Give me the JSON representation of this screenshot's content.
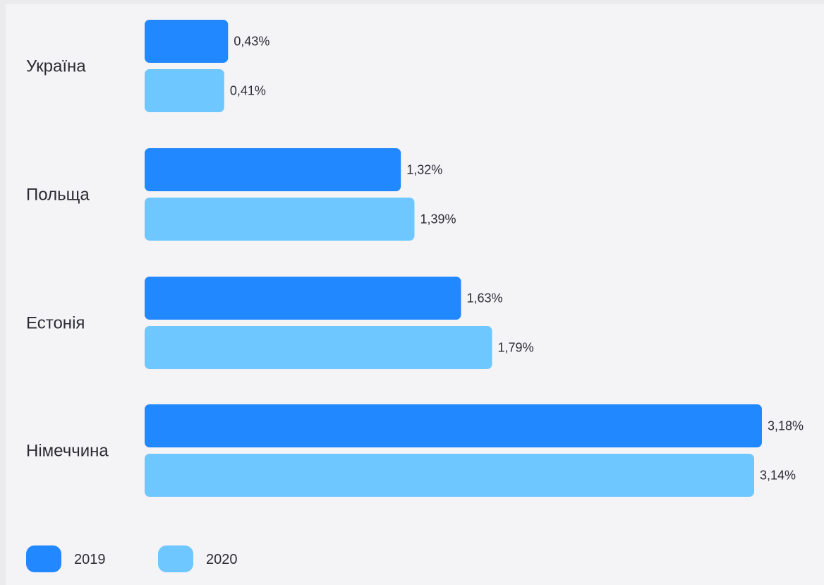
{
  "chart_data": {
    "type": "bar",
    "orientation": "horizontal",
    "categories": [
      "Україна",
      "Польща",
      "Естонія",
      "Німеччина"
    ],
    "series": [
      {
        "name": "2019",
        "color": "#2288ff",
        "values": [
          0.43,
          1.32,
          1.63,
          3.18
        ],
        "labels": [
          "0,43%",
          "1,32%",
          "1,63%",
          "3,18%"
        ]
      },
      {
        "name": "2020",
        "color": "#6fc7ff",
        "values": [
          0.41,
          1.39,
          1.79,
          3.14
        ],
        "labels": [
          "0,41%",
          "1,39%",
          "1,79%",
          "3,14%"
        ]
      }
    ],
    "xlim": [
      0,
      3.18
    ],
    "grid": false,
    "legend_position": "bottom-left"
  }
}
